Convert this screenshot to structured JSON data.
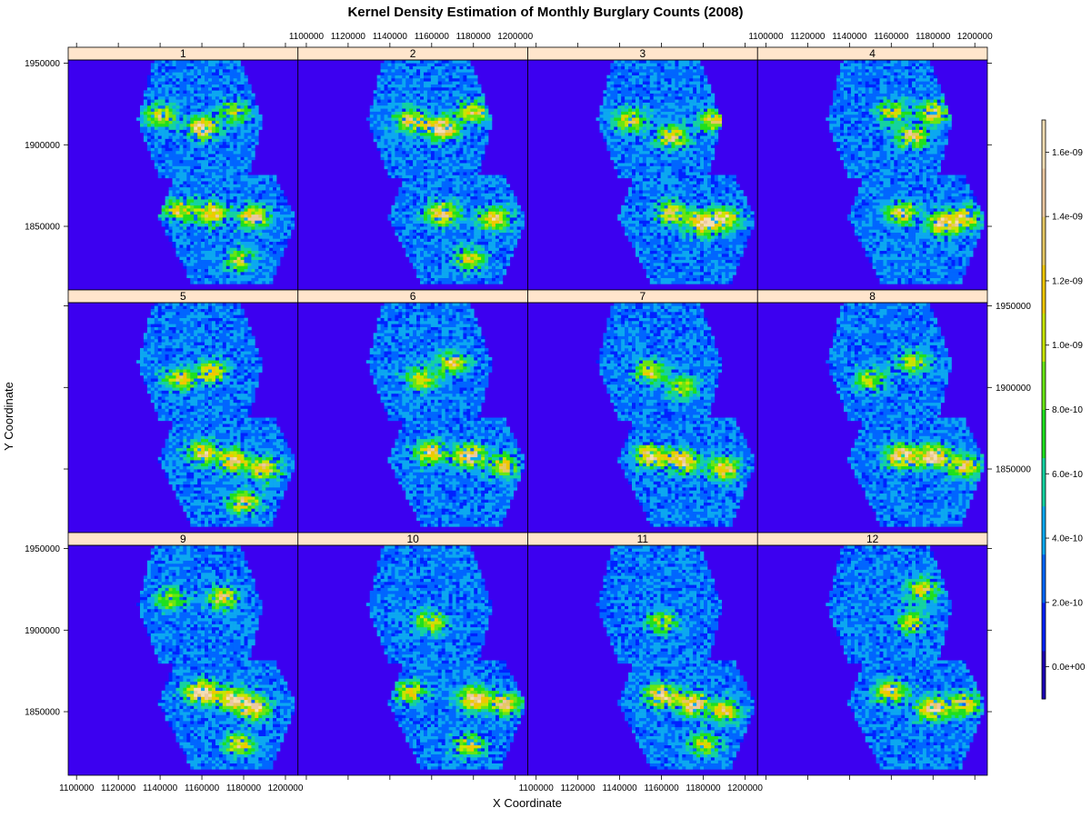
{
  "chart_data": {
    "type": "heatmap",
    "title": "Kernel Density Estimation of Monthly Burglary Counts (2008)",
    "xlabel": "X Coordinate",
    "ylabel": "Y Coordinate",
    "panels": [
      "1",
      "2",
      "3",
      "4",
      "5",
      "6",
      "7",
      "8",
      "9",
      "10",
      "11",
      "12"
    ],
    "xlim": [
      1096000,
      1206000
    ],
    "ylim": [
      1811000,
      1952000
    ],
    "x_ticks": [
      1100000,
      1120000,
      1140000,
      1160000,
      1180000,
      1200000
    ],
    "x_tick_labels": [
      "1100000",
      "1120000",
      "1140000",
      "1160000",
      "1180000",
      "1200000"
    ],
    "y_ticks": [
      1850000,
      1900000,
      1950000
    ],
    "y_tick_labels": [
      "1850000",
      "1900000",
      "1950000"
    ],
    "colorkey": {
      "range": [
        -1e-10,
        1.7e-09
      ],
      "ticks": [
        0,
        2e-10,
        4e-10,
        6e-10,
        8e-10,
        1e-09,
        1.2e-09,
        1.4e-09,
        1.6e-09
      ],
      "labels": [
        "0.0e+00",
        "2.0e-10",
        "4.0e-10",
        "6.0e-10",
        "8.0e-10",
        "1.0e-09",
        "1.2e-09",
        "1.4e-09",
        "1.6e-09"
      ],
      "colors": [
        "#1c00b4",
        "#0022ff",
        "#0066ff",
        "#0ca8f0",
        "#14d2a0",
        "#1ee01e",
        "#68e614",
        "#c8e600",
        "#f0c800",
        "#e6c864",
        "#ecc8a0",
        "#f5deb3"
      ]
    },
    "background_color": "#3c00f0",
    "strip_color": "#ffe5cc",
    "panel_hotspots": [
      [
        [
          1140000,
          1918000,
          1
        ],
        [
          1160000,
          1910000,
          1.3
        ],
        [
          1175000,
          1920000,
          0.8
        ],
        [
          1165000,
          1858000,
          1.2
        ],
        [
          1150000,
          1860000,
          0.9
        ],
        [
          1185000,
          1856000,
          1.1
        ],
        [
          1178000,
          1830000,
          0.8
        ]
      ],
      [
        [
          1150000,
          1915000,
          1.1
        ],
        [
          1165000,
          1910000,
          1.3
        ],
        [
          1180000,
          1920000,
          1
        ],
        [
          1165000,
          1858000,
          1.2
        ],
        [
          1190000,
          1855000,
          1.1
        ],
        [
          1178000,
          1830000,
          0.9
        ]
      ],
      [
        [
          1145000,
          1915000,
          0.9
        ],
        [
          1165000,
          1905000,
          1.1
        ],
        [
          1185000,
          1915000,
          0.9
        ],
        [
          1165000,
          1858000,
          1.1
        ],
        [
          1180000,
          1852000,
          1.3
        ],
        [
          1190000,
          1855000,
          1
        ]
      ],
      [
        [
          1160000,
          1920000,
          0.8
        ],
        [
          1170000,
          1905000,
          1.1
        ],
        [
          1180000,
          1920000,
          1
        ],
        [
          1165000,
          1858000,
          1
        ],
        [
          1185000,
          1852000,
          1.2
        ],
        [
          1195000,
          1855000,
          1
        ]
      ],
      [
        [
          1150000,
          1905000,
          0.9
        ],
        [
          1165000,
          1910000,
          1
        ],
        [
          1160000,
          1860000,
          1.1
        ],
        [
          1175000,
          1855000,
          1.2
        ],
        [
          1190000,
          1850000,
          1
        ],
        [
          1180000,
          1830000,
          1
        ]
      ],
      [
        [
          1155000,
          1905000,
          0.9
        ],
        [
          1170000,
          1915000,
          1
        ],
        [
          1160000,
          1860000,
          1.1
        ],
        [
          1178000,
          1858000,
          1.3
        ],
        [
          1195000,
          1852000,
          1
        ]
      ],
      [
        [
          1155000,
          1910000,
          0.9
        ],
        [
          1170000,
          1900000,
          0.8
        ],
        [
          1155000,
          1858000,
          1.2
        ],
        [
          1170000,
          1855000,
          1.3
        ],
        [
          1190000,
          1850000,
          1.1
        ]
      ],
      [
        [
          1150000,
          1905000,
          0.8
        ],
        [
          1170000,
          1915000,
          0.8
        ],
        [
          1165000,
          1858000,
          1.4
        ],
        [
          1180000,
          1858000,
          1.4
        ],
        [
          1195000,
          1852000,
          1
        ]
      ],
      [
        [
          1145000,
          1920000,
          0.8
        ],
        [
          1170000,
          1920000,
          1
        ],
        [
          1160000,
          1862000,
          1.5
        ],
        [
          1175000,
          1858000,
          1.2
        ],
        [
          1185000,
          1852000,
          1.2
        ],
        [
          1178000,
          1830000,
          0.9
        ]
      ],
      [
        [
          1160000,
          1905000,
          0.9
        ],
        [
          1180000,
          1858000,
          1.2
        ],
        [
          1150000,
          1862000,
          0.9
        ],
        [
          1195000,
          1855000,
          1.1
        ],
        [
          1178000,
          1830000,
          0.9
        ]
      ],
      [
        [
          1160000,
          1905000,
          0.8
        ],
        [
          1160000,
          1860000,
          1.3
        ],
        [
          1175000,
          1855000,
          1.3
        ],
        [
          1190000,
          1850000,
          1
        ],
        [
          1180000,
          1830000,
          0.8
        ]
      ],
      [
        [
          1175000,
          1925000,
          0.9
        ],
        [
          1170000,
          1905000,
          0.8
        ],
        [
          1160000,
          1862000,
          1.1
        ],
        [
          1180000,
          1852000,
          1.3
        ],
        [
          1195000,
          1855000,
          1
        ]
      ]
    ]
  }
}
